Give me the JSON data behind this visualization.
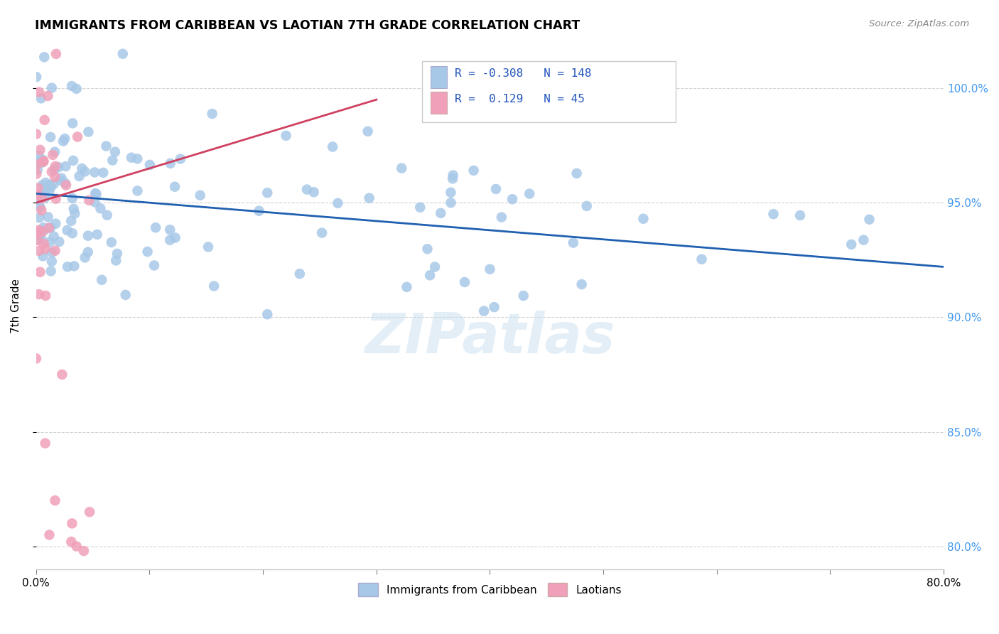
{
  "title": "IMMIGRANTS FROM CARIBBEAN VS LAOTIAN 7TH GRADE CORRELATION CHART",
  "source": "Source: ZipAtlas.com",
  "ylabel": "7th Grade",
  "y_ticks": [
    80.0,
    85.0,
    90.0,
    95.0,
    100.0
  ],
  "x_min": 0.0,
  "x_max": 80.0,
  "y_min": 79.0,
  "y_max": 102.0,
  "blue_R": -0.308,
  "blue_N": 148,
  "pink_R": 0.129,
  "pink_N": 45,
  "blue_color": "#a8c8e8",
  "pink_color": "#f0a0b8",
  "blue_line_color": "#2060b0",
  "pink_line_color": "#d04060",
  "watermark_text": "ZIPatlas",
  "legend_blue_label": "Immigrants from Caribbean",
  "legend_pink_label": "Laotians",
  "blue_trend_x0": 0.0,
  "blue_trend_x1": 80.0,
  "blue_trend_y0": 95.4,
  "blue_trend_y1": 92.2,
  "pink_trend_x0": 0.0,
  "pink_trend_x1": 30.0,
  "pink_trend_y0": 95.0,
  "pink_trend_y1": 99.5
}
